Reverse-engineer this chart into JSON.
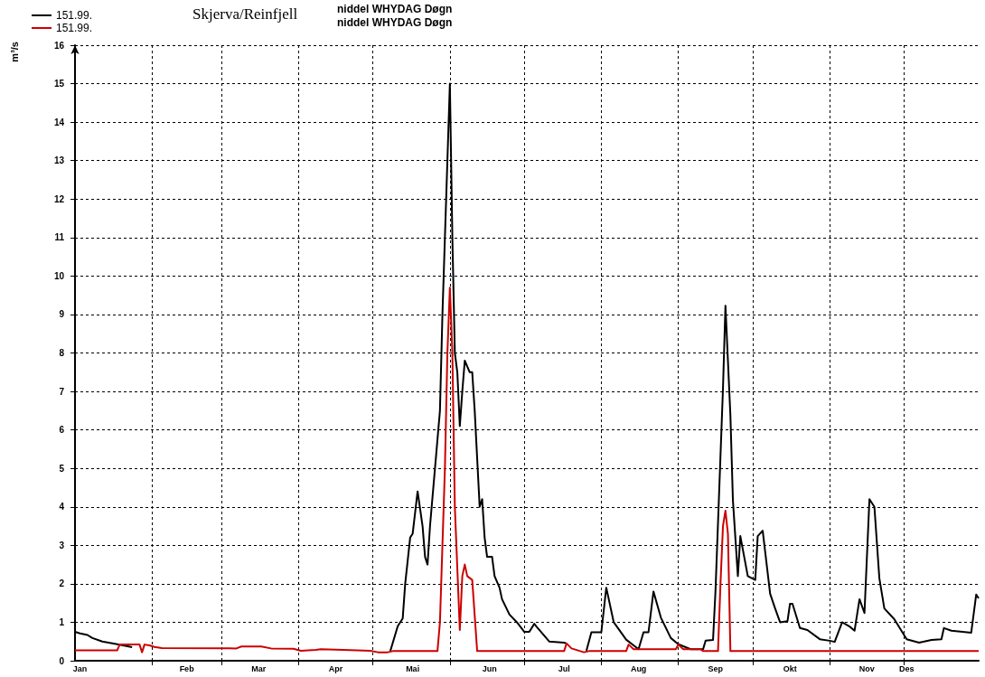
{
  "chart_data": {
    "type": "line",
    "title": "Skjerva/Reinfjell",
    "ylabel": "m³/s",
    "annotations": [
      "niddel WHYDAG Døgn",
      "niddel WHYDAG Døgn"
    ],
    "xlim": [
      "--01-01",
      "--12-31"
    ],
    "xticks": [
      {
        "value": "--01-03",
        "label": "Jan"
      },
      {
        "value": "--02-01",
        "label": null
      },
      {
        "value": "--02-15",
        "label": "Feb"
      },
      {
        "value": "--03-01",
        "label": null
      },
      {
        "value": "--03-16",
        "label": "Mar"
      },
      {
        "value": "--04-01",
        "label": null
      },
      {
        "value": "--04-16",
        "label": "Apr"
      },
      {
        "value": "--05-01",
        "label": null
      },
      {
        "value": "--05-17",
        "label": "Mai"
      },
      {
        "value": "--06-01",
        "label": null
      },
      {
        "value": "--06-17",
        "label": "Jun"
      },
      {
        "value": "--07-01",
        "label": null
      },
      {
        "value": "--07-17",
        "label": "Jul"
      },
      {
        "value": "--08-01",
        "label": null
      },
      {
        "value": "--08-16",
        "label": "Aug"
      },
      {
        "value": "--09-01",
        "label": null
      },
      {
        "value": "--09-16",
        "label": "Sep"
      },
      {
        "value": "--10-01",
        "label": null
      },
      {
        "value": "--10-16",
        "label": "Okt"
      },
      {
        "value": "--11-01",
        "label": null
      },
      {
        "value": "--11-16",
        "label": "Nov"
      },
      {
        "value": "--12-01",
        "label": null
      },
      {
        "value": "--12-02",
        "label": "Des"
      }
    ],
    "ylim": [
      0,
      16
    ],
    "yticks": [
      0,
      1,
      2,
      3,
      4,
      5,
      6,
      7,
      8,
      9,
      10,
      11,
      12,
      13,
      14,
      15,
      16
    ],
    "grid": true,
    "legend": "top left",
    "line_style": "solid",
    "marker": "none",
    "series": [
      {
        "name": "151.99.",
        "color": "#000000",
        "x": [
          "--01-01",
          "--01-03",
          "--01-06",
          "--01-08",
          "--01-12",
          "--01-18",
          "--01-24",
          "--03-01",
          "--05-08",
          "--05-11",
          "--05-13",
          "--05-14",
          "--05-16",
          "--05-17",
          "--05-19",
          "--05-21",
          "--05-22",
          "--05-23",
          "--05-24",
          "--05-26",
          "--05-28",
          "--05-29",
          "--05-30",
          "--05-31",
          "--06-01",
          "--06-02",
          "--06-03",
          "--06-04",
          "--06-05",
          "--06-06",
          "--06-07",
          "--06-09",
          "--06-10",
          "--06-11",
          "--06-13",
          "--06-14",
          "--06-15",
          "--06-16",
          "--06-18",
          "--06-19",
          "--06-21",
          "--06-22",
          "--06-25",
          "--06-28",
          "--07-01",
          "--07-03",
          "--07-05",
          "--07-06",
          "--07-11",
          "--07-17",
          "--07-18",
          "--07-22",
          "--07-26",
          "--07-28",
          "--08-01",
          "--08-03",
          "--08-06",
          "--08-11",
          "--08-16",
          "--08-18",
          "--08-20",
          "--08-22",
          "--08-25",
          "--08-29",
          "--09-01",
          "--09-06",
          "--09-11",
          "--09-12",
          "--09-15",
          "--09-16",
          "--09-19",
          "--09-20",
          "--09-22",
          "--09-23",
          "--09-25",
          "--09-26",
          "--09-29",
          "--10-02",
          "--10-03",
          "--10-05",
          "--10-08",
          "--10-10",
          "--10-12",
          "--10-15",
          "--10-16",
          "--10-17",
          "--10-20",
          "--10-23",
          "--10-28",
          "--11-01",
          "--11-03",
          "--11-06",
          "--11-09",
          "--11-11",
          "--11-13",
          "--11-15",
          "--11-17",
          "--11-19",
          "--11-21",
          "--11-23",
          "--11-27",
          "--12-02",
          "--12-07",
          "--12-12",
          "--12-16",
          "--12-17",
          "--12-20",
          "--12-28",
          "--12-30",
          "--12-31"
        ],
        "values": [
          0.75,
          0.71,
          0.67,
          0.59,
          0.5,
          0.43,
          0.35,
          null,
          0.25,
          0.9,
          1.1,
          2.0,
          3.2,
          3.3,
          4.4,
          3.5,
          2.7,
          2.5,
          3.5,
          5.0,
          6.5,
          9.0,
          11.0,
          13.0,
          15.0,
          11.0,
          8.0,
          7.5,
          6.1,
          7.0,
          7.8,
          7.5,
          7.5,
          6.5,
          4.0,
          4.2,
          3.2,
          2.7,
          2.7,
          2.2,
          1.9,
          1.6,
          1.2,
          1.0,
          0.75,
          0.75,
          0.96,
          0.88,
          0.5,
          0.47,
          0.45,
          null,
          0.26,
          0.74,
          0.74,
          1.9,
          1.0,
          0.55,
          0.3,
          0.74,
          0.74,
          1.8,
          1.12,
          0.59,
          0.43,
          0.3,
          0.3,
          0.52,
          0.54,
          1.83,
          7.07,
          9.23,
          6.37,
          4.18,
          2.2,
          3.24,
          2.2,
          2.1,
          3.24,
          3.38,
          1.74,
          1.36,
          1.0,
          1.03,
          1.48,
          1.48,
          0.85,
          0.8,
          0.56,
          0.52,
          0.49,
          1.0,
          0.89,
          0.78,
          1.6,
          1.24,
          4.2,
          4.0,
          2.14,
          1.36,
          1.08,
          0.56,
          0.47,
          0.54,
          0.56,
          0.85,
          0.78,
          0.73,
          1.72,
          1.62
        ]
      },
      {
        "name": "151.99.",
        "color": "#cc0000",
        "x": [
          "--01-01",
          "--01-18",
          "--01-19",
          "--01-27",
          "--01-28",
          "--01-29",
          "--01-31",
          "--02-02",
          "--02-05",
          "--03-07",
          "--03-09",
          "--03-17",
          "--03-21",
          "--03-30",
          "--04-02",
          "--04-08",
          "--04-10",
          "--04-19",
          "--04-30",
          "--05-03",
          "--05-07",
          "--05-09",
          "--05-27",
          "--05-28",
          "--05-29",
          "--05-30",
          "--05-31",
          "--06-01",
          "--06-02",
          "--06-03",
          "--06-05",
          "--06-06",
          "--06-07",
          "--06-08",
          "--06-10",
          "--06-12",
          "--07-17",
          "--07-18",
          "--07-20",
          "--07-25",
          "--07-27",
          "--08-11",
          "--08-12",
          "--08-14",
          "--08-31",
          "--09-01",
          "--09-03",
          "--09-10",
          "--09-11",
          "--09-17",
          "--09-18",
          "--09-19",
          "--09-20",
          "--09-21",
          "--09-22",
          "--12-31"
        ],
        "values": [
          0.27,
          0.27,
          0.42,
          0.42,
          0.22,
          0.42,
          0.4,
          0.36,
          0.33,
          0.32,
          0.37,
          0.37,
          0.32,
          0.31,
          0.26,
          0.28,
          0.3,
          0.28,
          0.26,
          0.22,
          0.22,
          0.25,
          0.25,
          1.0,
          3.0,
          5.0,
          8.0,
          9.7,
          8.0,
          4.0,
          0.8,
          2.2,
          2.5,
          2.2,
          2.1,
          0.25,
          0.25,
          0.45,
          0.32,
          0.22,
          0.25,
          0.25,
          0.42,
          0.3,
          0.3,
          0.42,
          0.3,
          0.3,
          0.25,
          0.25,
          2.0,
          3.5,
          3.9,
          3.3,
          0.25,
          0.25
        ]
      }
    ]
  }
}
